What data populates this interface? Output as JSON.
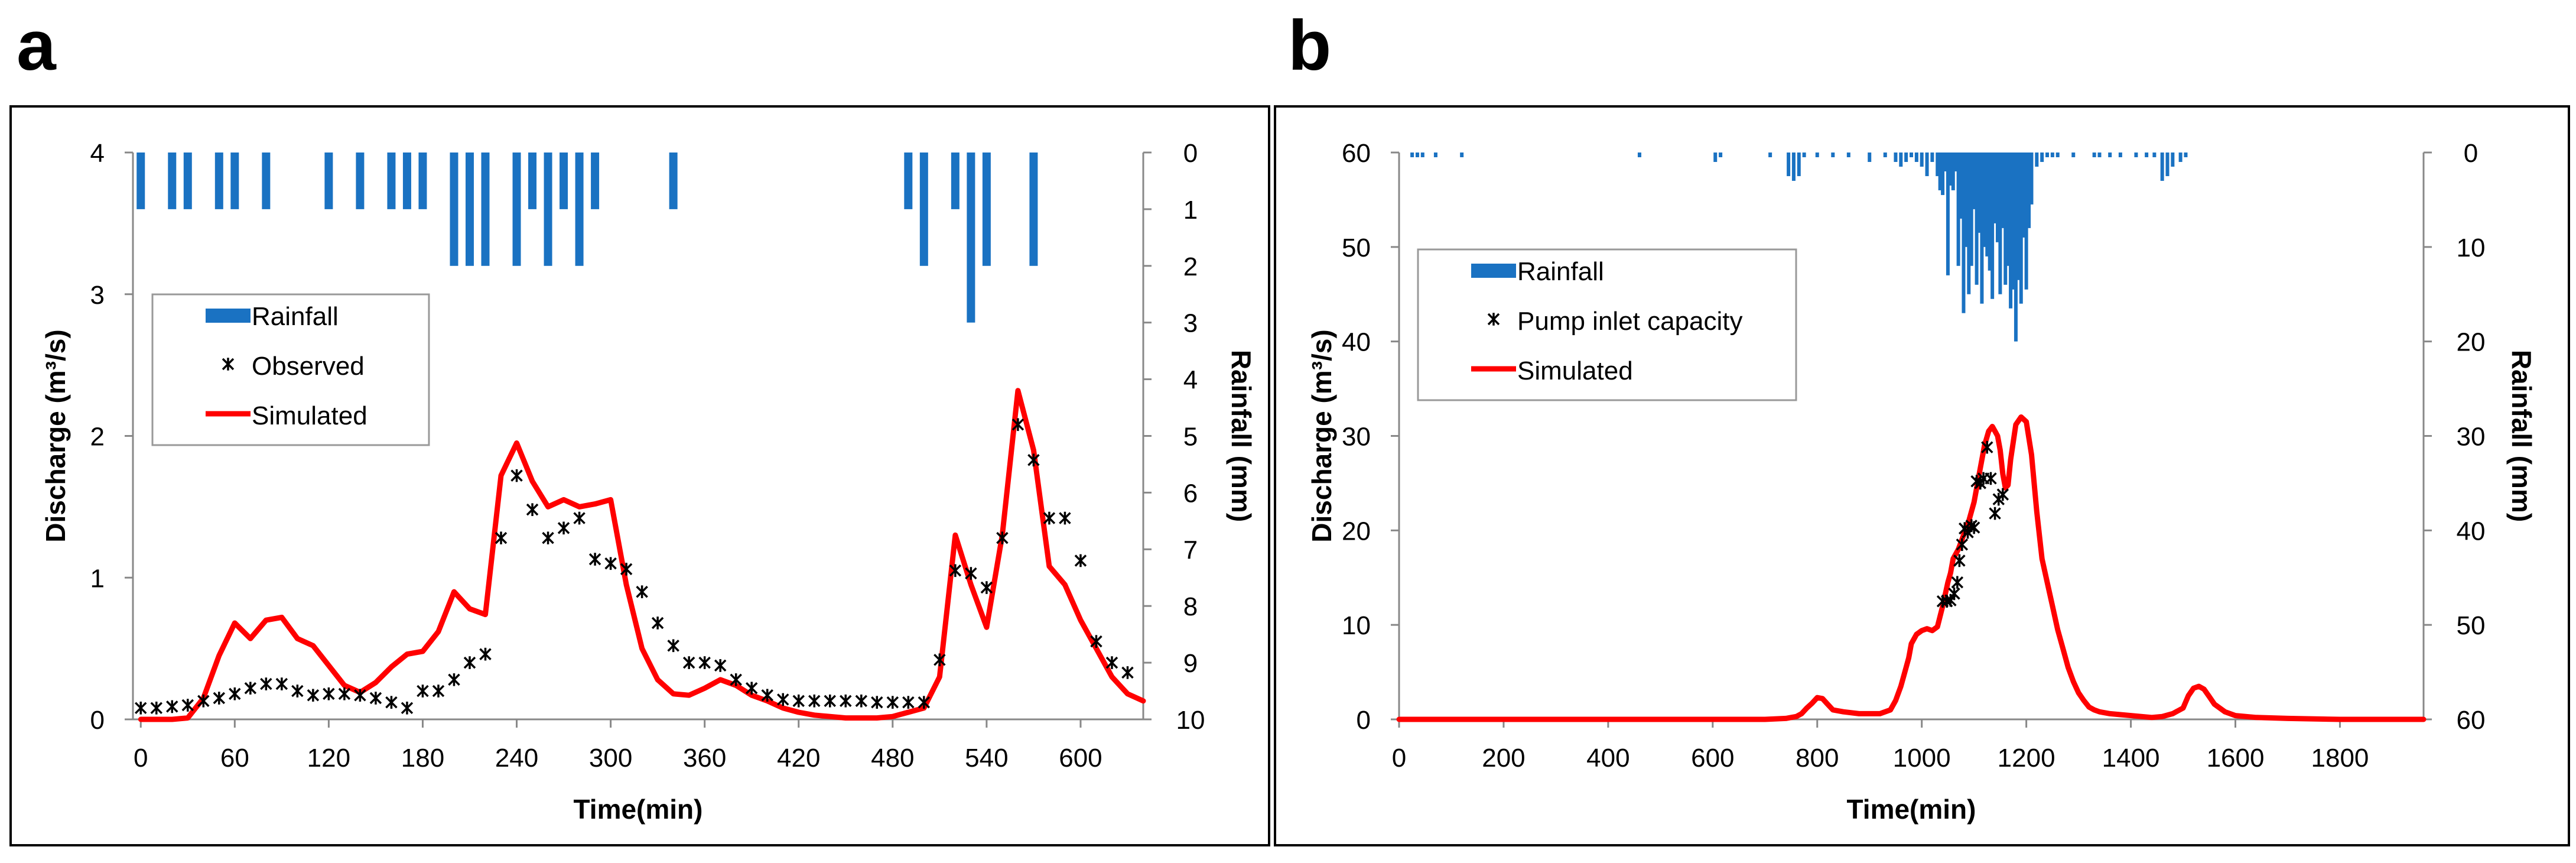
{
  "panel_letters": [
    "a",
    "b"
  ],
  "colors": {
    "rainfall": "#1a72c2",
    "simulated": "#ff0000",
    "observed": "#000000",
    "axis": "#000000"
  },
  "chart_data": [
    {
      "panel": "a",
      "type": "line",
      "xlabel": "Time(min)",
      "ylabel": "Discharge (m³/s)",
      "y2label": "Rainfall (mm)",
      "xlim": [
        -5,
        640
      ],
      "ylim": [
        0,
        4
      ],
      "y2lim": [
        0,
        10
      ],
      "y2_inverted": true,
      "xticks": [
        0,
        60,
        120,
        180,
        240,
        300,
        360,
        420,
        480,
        540,
        600
      ],
      "yticks": [
        0,
        1,
        2,
        3,
        4
      ],
      "y2ticks": [
        0,
        1,
        2,
        3,
        4,
        5,
        6,
        7,
        8,
        9,
        10
      ],
      "legend": {
        "position": "upper-left",
        "entries": [
          "Rainfall",
          "Observed",
          "Simulated"
        ]
      },
      "rainfall": {
        "name": "Rainfall",
        "x": [
          0,
          20,
          30,
          50,
          60,
          80,
          120,
          140,
          160,
          170,
          180,
          200,
          210,
          220,
          240,
          250,
          260,
          270,
          280,
          290,
          340,
          490,
          500,
          520,
          530,
          540,
          570
        ],
        "values": [
          1,
          1,
          1,
          1,
          1,
          1,
          1,
          1,
          1,
          1,
          1,
          2,
          2,
          2,
          2,
          1,
          2,
          1,
          2,
          1,
          1,
          1,
          2,
          1,
          3,
          2,
          2
        ]
      },
      "observed": {
        "name": "Observed",
        "x": [
          0,
          10,
          20,
          30,
          40,
          50,
          60,
          70,
          80,
          90,
          100,
          110,
          120,
          130,
          140,
          150,
          160,
          170,
          180,
          190,
          200,
          210,
          220,
          230,
          240,
          250,
          260,
          270,
          280,
          290,
          300,
          310,
          320,
          330,
          340,
          350,
          360,
          370,
          380,
          390,
          400,
          410,
          420,
          430,
          440,
          450,
          460,
          470,
          480,
          490,
          500,
          510,
          520,
          530,
          540,
          550,
          560,
          570,
          580,
          590,
          600,
          610,
          620,
          630
        ],
        "y": [
          0.08,
          0.08,
          0.09,
          0.1,
          0.13,
          0.15,
          0.18,
          0.22,
          0.25,
          0.25,
          0.2,
          0.17,
          0.18,
          0.18,
          0.17,
          0.15,
          0.12,
          0.08,
          0.2,
          0.2,
          0.28,
          0.4,
          0.46,
          1.28,
          1.72,
          1.48,
          1.28,
          1.35,
          1.42,
          1.13,
          1.1,
          1.06,
          0.9,
          0.68,
          0.52,
          0.4,
          0.4,
          0.38,
          0.28,
          0.22,
          0.17,
          0.14,
          0.13,
          0.13,
          0.13,
          0.13,
          0.13,
          0.12,
          0.12,
          0.12,
          0.12,
          0.42,
          1.05,
          1.03,
          0.93,
          1.28,
          2.08,
          1.83,
          1.42,
          1.42,
          1.12,
          0.55,
          0.4,
          0.33
        ]
      },
      "simulated": {
        "name": "Simulated",
        "x": [
          0,
          10,
          20,
          30,
          40,
          50,
          60,
          70,
          80,
          90,
          100,
          110,
          120,
          130,
          140,
          150,
          160,
          170,
          180,
          190,
          200,
          210,
          220,
          230,
          240,
          250,
          260,
          270,
          280,
          290,
          300,
          310,
          320,
          330,
          340,
          350,
          360,
          370,
          380,
          390,
          400,
          410,
          420,
          430,
          440,
          450,
          460,
          470,
          480,
          490,
          500,
          510,
          520,
          530,
          540,
          550,
          560,
          570,
          580,
          590,
          600,
          610,
          620,
          630,
          640
        ],
        "y": [
          0.0,
          0.0,
          0.0,
          0.01,
          0.15,
          0.45,
          0.68,
          0.57,
          0.7,
          0.72,
          0.57,
          0.52,
          0.38,
          0.24,
          0.19,
          0.26,
          0.37,
          0.46,
          0.48,
          0.62,
          0.9,
          0.78,
          0.74,
          1.72,
          1.95,
          1.68,
          1.5,
          1.55,
          1.5,
          1.52,
          1.55,
          0.95,
          0.5,
          0.28,
          0.18,
          0.17,
          0.22,
          0.28,
          0.24,
          0.17,
          0.13,
          0.08,
          0.05,
          0.03,
          0.02,
          0.01,
          0.01,
          0.01,
          0.02,
          0.05,
          0.08,
          0.3,
          1.3,
          0.95,
          0.65,
          1.3,
          2.32,
          1.9,
          1.08,
          0.95,
          0.7,
          0.5,
          0.3,
          0.18,
          0.13
        ]
      }
    },
    {
      "panel": "b",
      "type": "line",
      "xlabel": "Time(min)",
      "ylabel": "Discharge (m³/s)",
      "y2label": "Rainfall (mm)",
      "xlim": [
        0,
        1960
      ],
      "ylim": [
        0,
        60
      ],
      "y2lim": [
        0,
        60
      ],
      "y2_inverted": true,
      "xticks": [
        0,
        200,
        400,
        600,
        800,
        1000,
        1200,
        1400,
        1600,
        1800
      ],
      "yticks": [
        0,
        10,
        20,
        30,
        40,
        50,
        60
      ],
      "y2ticks": [
        0,
        10,
        20,
        30,
        40,
        50,
        60
      ],
      "legend": {
        "position": "upper-left",
        "entries": [
          "Rainfall",
          "Pump inlet capacity",
          "Simulated"
        ]
      },
      "rainfall": {
        "name": "Rainfall",
        "x": [
          25,
          35,
          45,
          70,
          120,
          460,
          605,
          615,
          710,
          745,
          755,
          765,
          775,
          800,
          830,
          860,
          900,
          930,
          950,
          960,
          970,
          980,
          990,
          1000,
          1010,
          1020,
          1030,
          1035,
          1040,
          1045,
          1050,
          1055,
          1060,
          1065,
          1070,
          1075,
          1080,
          1085,
          1090,
          1095,
          1100,
          1105,
          1110,
          1115,
          1120,
          1125,
          1130,
          1135,
          1140,
          1145,
          1150,
          1155,
          1160,
          1165,
          1170,
          1175,
          1180,
          1185,
          1190,
          1195,
          1200,
          1205,
          1210,
          1220,
          1230,
          1240,
          1250,
          1260,
          1290,
          1330,
          1340,
          1360,
          1380,
          1410,
          1430,
          1445,
          1460,
          1470,
          1480,
          1495,
          1505
        ],
        "values": [
          0.5,
          0.5,
          0.5,
          0.5,
          0.5,
          0.5,
          1,
          0.5,
          0.5,
          2.5,
          3,
          2.5,
          0.5,
          0.5,
          0.5,
          0.5,
          1,
          0.5,
          1,
          1.5,
          1,
          0.5,
          1,
          1.5,
          2.5,
          1,
          2.5,
          4,
          4.5,
          2,
          13,
          3.5,
          4,
          2,
          12,
          7,
          17,
          10,
          15,
          12,
          6,
          14,
          8.5,
          16,
          10,
          11,
          12.5,
          15.5,
          7.5,
          9.5,
          15,
          8,
          14,
          12,
          16.5,
          14.5,
          20,
          13.5,
          16,
          9,
          14.5,
          8,
          5.5,
          1.5,
          1,
          0.5,
          0.5,
          0.5,
          0.5,
          0.5,
          0.5,
          0.5,
          0.5,
          0.5,
          0.5,
          0.5,
          3,
          2.5,
          1.5,
          1,
          0.5
        ]
      },
      "observed": {
        "name": "Pump inlet capacity",
        "x": [
          1040,
          1048,
          1055,
          1062,
          1068,
          1072,
          1077,
          1082,
          1088,
          1095,
          1100,
          1105,
          1112,
          1118,
          1125,
          1132,
          1140,
          1147,
          1155
        ],
        "y": [
          12.5,
          12.5,
          12.6,
          13.3,
          14.5,
          16.8,
          18.5,
          20.2,
          19.8,
          20.5,
          20.3,
          25.2,
          25.0,
          25.5,
          28.8,
          25.5,
          21.8,
          23.3,
          23.8
        ]
      },
      "simulated": {
        "name": "Simulated",
        "x": [
          0,
          700,
          740,
          760,
          770,
          780,
          790,
          800,
          810,
          820,
          830,
          850,
          880,
          920,
          940,
          950,
          960,
          970,
          975,
          980,
          990,
          1000,
          1010,
          1020,
          1030,
          1040,
          1050,
          1055,
          1060,
          1070,
          1080,
          1090,
          1100,
          1110,
          1120,
          1128,
          1135,
          1140,
          1145,
          1150,
          1155,
          1160,
          1165,
          1170,
          1180,
          1190,
          1200,
          1210,
          1220,
          1230,
          1240,
          1250,
          1260,
          1270,
          1280,
          1290,
          1300,
          1310,
          1320,
          1330,
          1340,
          1350,
          1360,
          1380,
          1420,
          1440,
          1460,
          1480,
          1500,
          1510,
          1520,
          1530,
          1540,
          1550,
          1560,
          1580,
          1600,
          1640,
          1700,
          1800,
          1960
        ],
        "y": [
          0,
          0,
          0.1,
          0.3,
          0.6,
          1.2,
          1.7,
          2.3,
          2.2,
          1.6,
          1.0,
          0.8,
          0.6,
          0.6,
          1.0,
          2.0,
          3.5,
          5.5,
          6.5,
          8.0,
          9.0,
          9.4,
          9.6,
          9.4,
          9.8,
          12.0,
          14.5,
          15.5,
          17.0,
          18.0,
          19.5,
          21.0,
          23.0,
          26.0,
          29.0,
          30.5,
          31.0,
          30.5,
          30.0,
          28.5,
          26.0,
          24.5,
          24.8,
          27.5,
          31.2,
          32.0,
          31.5,
          28.0,
          22.0,
          17.0,
          14.5,
          12.0,
          9.5,
          7.5,
          5.5,
          4.0,
          2.8,
          2.0,
          1.3,
          1.0,
          0.8,
          0.7,
          0.6,
          0.5,
          0.3,
          0.2,
          0.3,
          0.6,
          1.2,
          2.5,
          3.3,
          3.5,
          3.2,
          2.4,
          1.6,
          0.8,
          0.4,
          0.2,
          0.1,
          0.0,
          0.0
        ]
      }
    }
  ]
}
